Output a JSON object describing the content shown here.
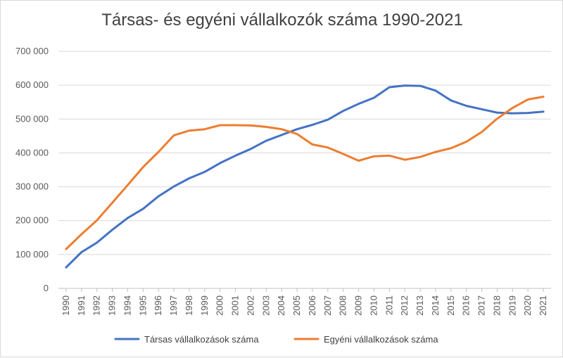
{
  "chart_data": {
    "type": "line",
    "title": "Társas- és egyéni vállalkozók száma 1990-2021",
    "categories": [
      "1990",
      "1991",
      "1992",
      "1993",
      "1994",
      "1995",
      "1996",
      "1997",
      "1998",
      "1999",
      "2000",
      "2001",
      "2002",
      "2003",
      "2004",
      "2005",
      "2006",
      "2007",
      "2008",
      "2009",
      "2010",
      "2011",
      "2012",
      "2013",
      "2014",
      "2015",
      "2016",
      "2017",
      "2018",
      "2019",
      "2020",
      "2021"
    ],
    "series": [
      {
        "name": "Társas vállalkozások száma",
        "color": "#4472C4",
        "values": [
          62000,
          107000,
          135000,
          173000,
          208000,
          235000,
          272000,
          301000,
          325000,
          344000,
          370000,
          392000,
          412000,
          436000,
          453000,
          470000,
          483000,
          498000,
          524000,
          545000,
          563000,
          594000,
          599000,
          598000,
          584000,
          555000,
          539000,
          529000,
          519000,
          517000,
          518000,
          522000
        ]
      },
      {
        "name": "Egyéni vállalkozások száma",
        "color": "#ED7D31",
        "values": [
          116000,
          160000,
          201000,
          253000,
          305000,
          358000,
          403000,
          452000,
          466000,
          470000,
          482000,
          482000,
          481000,
          477000,
          470000,
          456000,
          425000,
          416000,
          397000,
          377000,
          390000,
          392000,
          380000,
          388000,
          403000,
          414000,
          433000,
          462000,
          501000,
          533000,
          558000,
          566000
        ]
      }
    ],
    "yticks": [
      "0",
      "100 000",
      "200 000",
      "300 000",
      "400 000",
      "500 000",
      "600 000",
      "700 000"
    ],
    "ylim": [
      0,
      700000
    ],
    "grid": true,
    "legend_position": "bottom"
  }
}
